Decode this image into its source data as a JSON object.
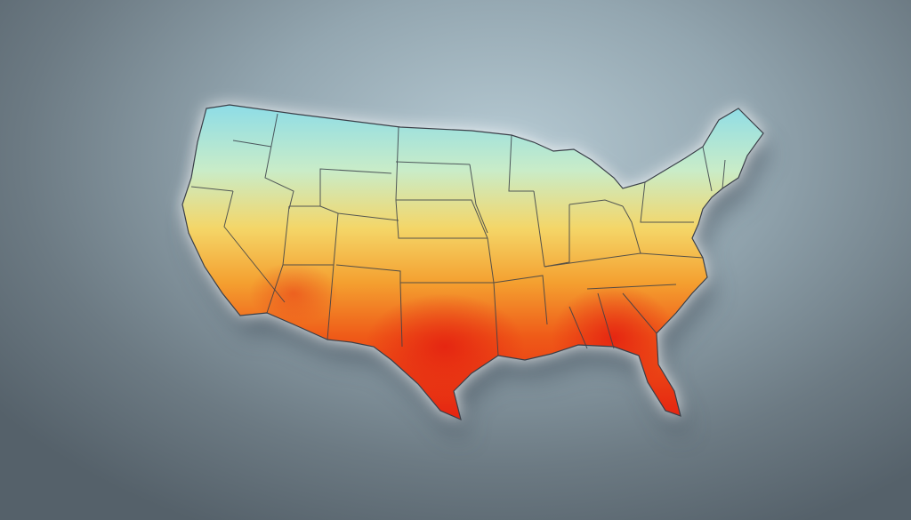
{
  "map": {
    "subject": "contiguous-united-states-heat-map",
    "colors": {
      "cold": "#8fdde6",
      "cool": "#c9ecc8",
      "mild": "#f4d668",
      "warm": "#f4a030",
      "hot": "#ef5a18",
      "hottest": "#e41e10",
      "border": "#3a3f48",
      "glow": "#ffffff"
    }
  }
}
